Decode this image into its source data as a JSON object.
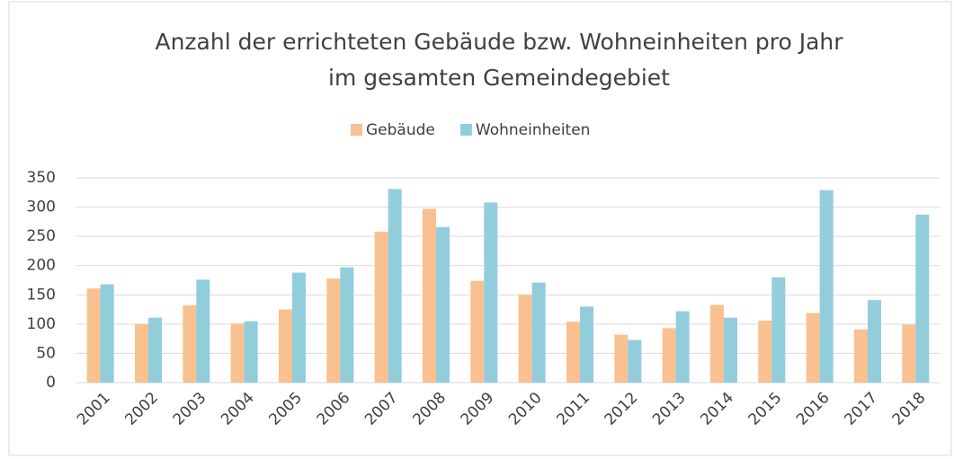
{
  "chart_data": {
    "type": "bar",
    "title": [
      "Anzahl der errichteten Gebäude bzw. Wohneinheiten pro Jahr",
      "im gesamten Gemeindegebiet"
    ],
    "categories": [
      "2001",
      "2002",
      "2003",
      "2004",
      "2005",
      "2006",
      "2007",
      "2008",
      "2009",
      "2010",
      "2011",
      "2012",
      "2013",
      "2014",
      "2015",
      "2016",
      "2017",
      "2018"
    ],
    "series": [
      {
        "name": "Gebäude",
        "color": "#f9c090",
        "values": [
          161,
          100,
          132,
          101,
          125,
          178,
          258,
          297,
          174,
          150,
          104,
          82,
          93,
          133,
          106,
          119,
          91,
          99
        ]
      },
      {
        "name": "Wohneinheiten",
        "color": "#92cddc",
        "values": [
          168,
          111,
          176,
          105,
          188,
          197,
          331,
          266,
          308,
          171,
          130,
          73,
          122,
          111,
          180,
          329,
          141,
          287
        ]
      }
    ],
    "ylim": [
      0,
      350
    ],
    "yticks": [
      0,
      50,
      100,
      150,
      200,
      250,
      300,
      350
    ],
    "grid": true,
    "legend": "top"
  }
}
